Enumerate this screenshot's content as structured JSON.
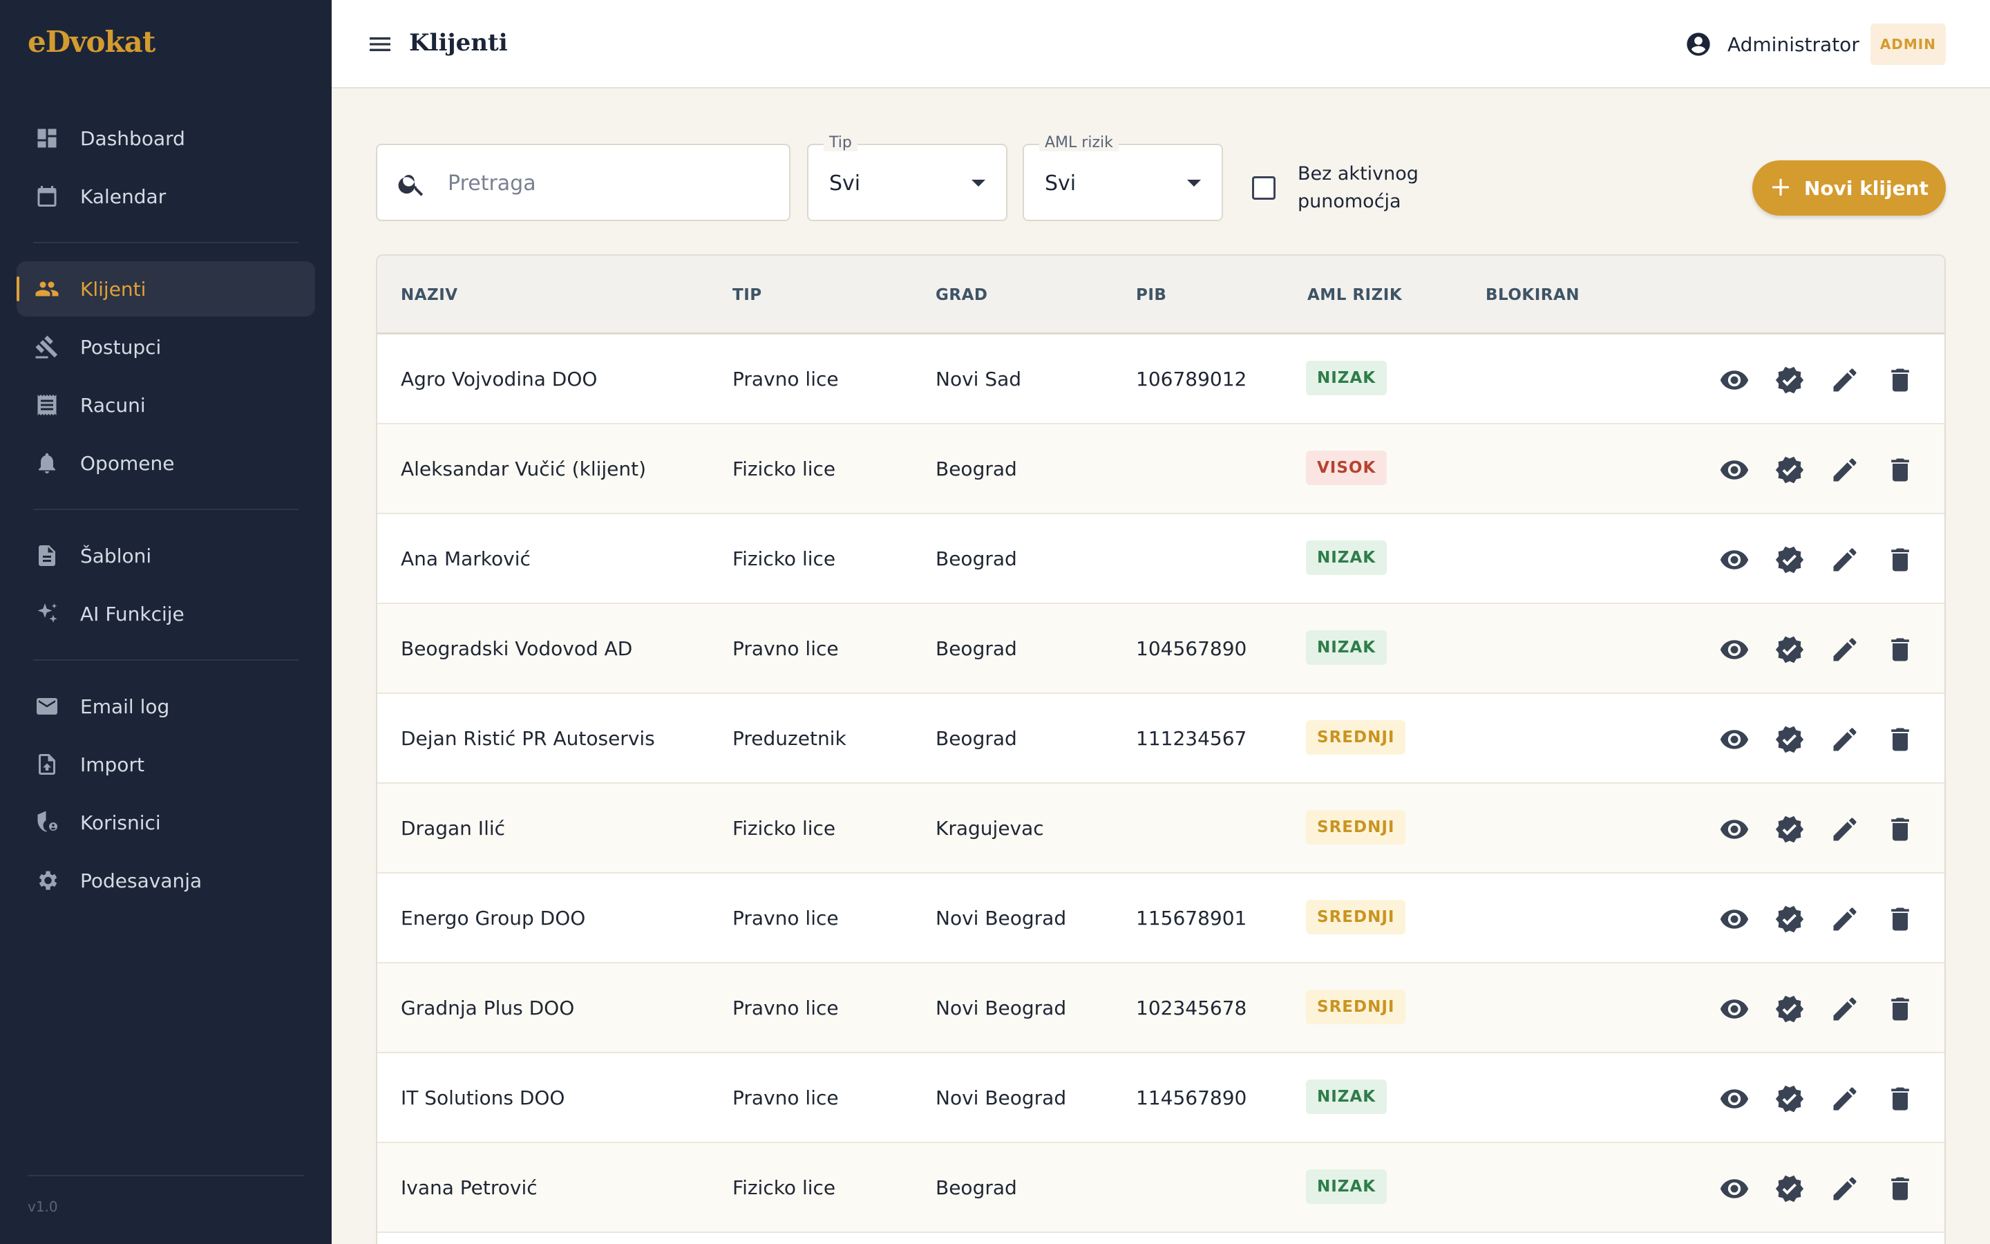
{
  "app": {
    "logo": "eDvokat",
    "version": "v1.0"
  },
  "sidebar": {
    "items": [
      {
        "label": "Dashboard",
        "icon": "dashboard-icon",
        "group": 1
      },
      {
        "label": "Kalendar",
        "icon": "calendar-icon",
        "group": 1
      },
      {
        "label": "Klijenti",
        "icon": "people-icon",
        "group": 2,
        "active": true
      },
      {
        "label": "Postupci",
        "icon": "gavel-icon",
        "group": 2
      },
      {
        "label": "Racuni",
        "icon": "receipt-icon",
        "group": 2
      },
      {
        "label": "Opomene",
        "icon": "bell-icon",
        "group": 2
      },
      {
        "label": "Šabloni",
        "icon": "document-icon",
        "group": 3
      },
      {
        "label": "AI Funkcije",
        "icon": "sparkle-icon",
        "group": 3
      },
      {
        "label": "Email log",
        "icon": "mail-icon",
        "group": 4
      },
      {
        "label": "Import",
        "icon": "upload-file-icon",
        "group": 4
      },
      {
        "label": "Korisnici",
        "icon": "security-user-icon",
        "group": 4
      },
      {
        "label": "Podesavanja",
        "icon": "gear-icon",
        "group": 4
      }
    ]
  },
  "header": {
    "title": "Klijenti",
    "user_name": "Administrator",
    "role_badge": "ADMIN"
  },
  "filters": {
    "search_placeholder": "Pretraga",
    "tip_label": "Tip",
    "tip_value": "Svi",
    "aml_label": "AML rizik",
    "aml_value": "Svi",
    "checkbox_label": "Bez aktivnog punomoćja",
    "checkbox_checked": false,
    "new_button": "Novi klijent"
  },
  "table": {
    "columns": [
      "NAZIV",
      "TIP",
      "GRAD",
      "PIB",
      "AML RIZIK",
      "BLOKIRAN"
    ],
    "rows": [
      {
        "naziv": "Agro Vojvodina DOO",
        "tip": "Pravno lice",
        "grad": "Novi Sad",
        "pib": "106789012",
        "aml": "NIZAK",
        "blokiran": ""
      },
      {
        "naziv": "Aleksandar Vučić (klijent)",
        "tip": "Fizicko lice",
        "grad": "Beograd",
        "pib": "",
        "aml": "VISOK",
        "blokiran": ""
      },
      {
        "naziv": "Ana Marković",
        "tip": "Fizicko lice",
        "grad": "Beograd",
        "pib": "",
        "aml": "NIZAK",
        "blokiran": ""
      },
      {
        "naziv": "Beogradski Vodovod AD",
        "tip": "Pravno lice",
        "grad": "Beograd",
        "pib": "104567890",
        "aml": "NIZAK",
        "blokiran": ""
      },
      {
        "naziv": "Dejan Ristić PR Autoservis",
        "tip": "Preduzetnik",
        "grad": "Beograd",
        "pib": "111234567",
        "aml": "SREDNJI",
        "blokiran": ""
      },
      {
        "naziv": "Dragan Ilić",
        "tip": "Fizicko lice",
        "grad": "Kragujevac",
        "pib": "",
        "aml": "SREDNJI",
        "blokiran": ""
      },
      {
        "naziv": "Energo Group DOO",
        "tip": "Pravno lice",
        "grad": "Novi Beograd",
        "pib": "115678901",
        "aml": "SREDNJI",
        "blokiran": ""
      },
      {
        "naziv": "Gradnja Plus DOO",
        "tip": "Pravno lice",
        "grad": "Novi Beograd",
        "pib": "102345678",
        "aml": "SREDNJI",
        "blokiran": ""
      },
      {
        "naziv": "IT Solutions DOO",
        "tip": "Pravno lice",
        "grad": "Novi Beograd",
        "pib": "114567890",
        "aml": "NIZAK",
        "blokiran": ""
      },
      {
        "naziv": "Ivana Petrović",
        "tip": "Fizicko lice",
        "grad": "Beograd",
        "pib": "",
        "aml": "NIZAK",
        "blokiran": ""
      }
    ],
    "row_action_icons": [
      "eye-icon",
      "verified-badge-icon",
      "pencil-icon",
      "trash-icon"
    ]
  },
  "colors": {
    "sidebar_bg": "#1c2537",
    "accent": "#d49b2e",
    "risk_low": "#2e7d4a",
    "risk_mid": "#c99420",
    "risk_high": "#b54430"
  }
}
